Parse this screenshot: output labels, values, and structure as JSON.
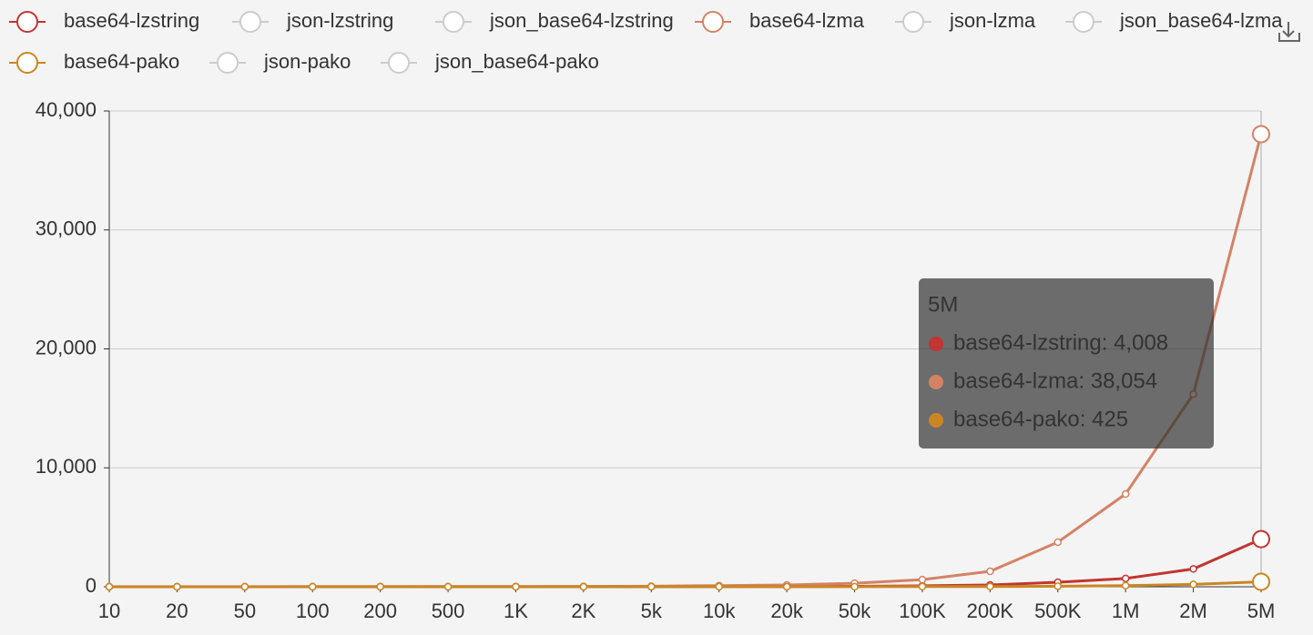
{
  "chart_data": {
    "type": "line",
    "categories": [
      "10",
      "20",
      "50",
      "100",
      "200",
      "500",
      "1K",
      "2K",
      "5k",
      "10k",
      "20k",
      "50k",
      "100K",
      "200K",
      "500K",
      "1M",
      "2M",
      "5M"
    ],
    "series": [
      {
        "name": "base64-lzstring",
        "color": "#c23531",
        "visible": true,
        "values": [
          2,
          3,
          4,
          5,
          6,
          7,
          8,
          9,
          12,
          15,
          20,
          40,
          80,
          150,
          380,
          700,
          1500,
          4008
        ]
      },
      {
        "name": "json-lzstring",
        "color": "#cccccc",
        "visible": false,
        "values": [
          null,
          null,
          null,
          null,
          null,
          null,
          null,
          null,
          null,
          null,
          null,
          null,
          null,
          null,
          null,
          null,
          null,
          null
        ]
      },
      {
        "name": "json_base64-lzstring",
        "color": "#cccccc",
        "visible": false,
        "values": [
          null,
          null,
          null,
          null,
          null,
          null,
          null,
          null,
          null,
          null,
          null,
          null,
          null,
          null,
          null,
          null,
          null,
          null
        ]
      },
      {
        "name": "base64-lzma",
        "color": "#d48265",
        "visible": true,
        "values": [
          5,
          6,
          8,
          10,
          12,
          15,
          20,
          25,
          50,
          100,
          150,
          300,
          600,
          1300,
          3750,
          7800,
          16200,
          38054
        ]
      },
      {
        "name": "json-lzma",
        "color": "#cccccc",
        "visible": false,
        "values": [
          null,
          null,
          null,
          null,
          null,
          null,
          null,
          null,
          null,
          null,
          null,
          null,
          null,
          null,
          null,
          null,
          null,
          null
        ]
      },
      {
        "name": "json_base64-lzma",
        "color": "#cccccc",
        "visible": false,
        "values": [
          null,
          null,
          null,
          null,
          null,
          null,
          null,
          null,
          null,
          null,
          null,
          null,
          null,
          null,
          null,
          null,
          null,
          null
        ]
      },
      {
        "name": "base64-pako",
        "color": "#ca8622",
        "visible": true,
        "values": [
          1,
          1,
          1,
          2,
          2,
          3,
          3,
          4,
          5,
          6,
          8,
          10,
          15,
          20,
          50,
          100,
          200,
          425
        ]
      },
      {
        "name": "json-pako",
        "color": "#cccccc",
        "visible": false,
        "values": [
          null,
          null,
          null,
          null,
          null,
          null,
          null,
          null,
          null,
          null,
          null,
          null,
          null,
          null,
          null,
          null,
          null,
          null
        ]
      },
      {
        "name": "json_base64-pako",
        "color": "#cccccc",
        "visible": false,
        "values": [
          null,
          null,
          null,
          null,
          null,
          null,
          null,
          null,
          null,
          null,
          null,
          null,
          null,
          null,
          null,
          null,
          null,
          null
        ]
      }
    ],
    "ylim": [
      0,
      40000
    ],
    "yticks": [
      0,
      {
        "value": 10000,
        "label": "10,000"
      },
      {
        "value": 20000,
        "label": "20,000"
      },
      {
        "value": 30000,
        "label": "30,000"
      },
      {
        "value": 40000,
        "label": "40,000"
      }
    ],
    "grid": true,
    "legend": "top-left",
    "tooltip": {
      "title": "5M",
      "items": [
        "base64-lzstring: 4,008",
        "base64-lzma: 38,054",
        "base64-pako: 425"
      ]
    }
  }
}
